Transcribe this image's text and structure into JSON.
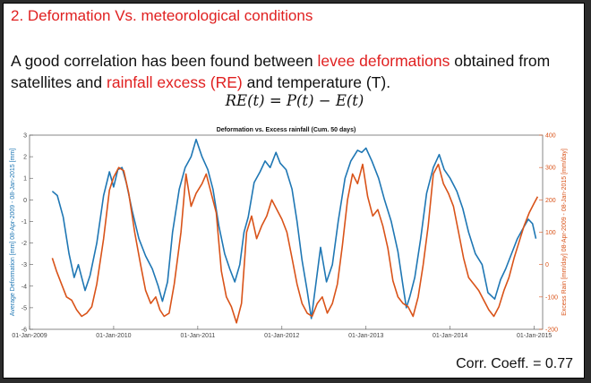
{
  "slide": {
    "heading": "2. Deformation Vs. meteorological conditions",
    "intro": {
      "part1": "A good correlation has been found between ",
      "highlight1": "levee deformations",
      "part2": " obtained from satellites and ",
      "highlight2": "rainfall excess (RE)",
      "part3": " and temperature (T).",
      "formula": "RE(t) = P(t) − E(t)"
    },
    "corr_coeff": "Corr. Coeff. = 0.77"
  },
  "chart_data": {
    "type": "line",
    "title": "Deformation vs. Excess rainfall (Cum. 50 days)",
    "ylabel_left": "Average Deformation [mm] 08-Apr-2009 - 08-Jan-2015 [mm]",
    "ylabel_right": "Excess Rain [mm/day] 08-Apr-2009 - 08-Jan-2015 [mm/day]",
    "x_ticks": [
      "01-Jan-2009",
      "01-Jan-2010",
      "01-Jan-2011",
      "01-Jan-2012",
      "01-Jan-2013",
      "01-Jan-2014",
      "01-Jan-2015"
    ],
    "x_range": [
      2009.0,
      2015.1
    ],
    "ylim_left": [
      -6,
      3
    ],
    "y_ticks_left": [
      3,
      2,
      1,
      0,
      -1,
      -2,
      -3,
      -4,
      -5,
      -6
    ],
    "ylim_right": [
      -200,
      400
    ],
    "y_ticks_right": [
      400,
      300,
      200,
      100,
      0,
      -100,
      -200
    ],
    "colors": {
      "deformation": "#1f77b4",
      "excess_rain": "#d95319"
    },
    "series": [
      {
        "axis": "left",
        "color": "#1f77b4",
        "points": [
          [
            2009.27,
            0.4
          ],
          [
            2009.33,
            0.2
          ],
          [
            2009.4,
            -0.8
          ],
          [
            2009.47,
            -2.5
          ],
          [
            2009.53,
            -3.6
          ],
          [
            2009.58,
            -3.0
          ],
          [
            2009.66,
            -4.2
          ],
          [
            2009.72,
            -3.5
          ],
          [
            2009.8,
            -2.0
          ],
          [
            2009.88,
            0.2
          ],
          [
            2009.95,
            1.3
          ],
          [
            2010.0,
            0.6
          ],
          [
            2010.05,
            1.4
          ],
          [
            2010.1,
            1.5
          ],
          [
            2010.15,
            0.8
          ],
          [
            2010.22,
            -0.5
          ],
          [
            2010.3,
            -1.8
          ],
          [
            2010.38,
            -2.6
          ],
          [
            2010.46,
            -3.2
          ],
          [
            2010.53,
            -4.0
          ],
          [
            2010.58,
            -4.7
          ],
          [
            2010.64,
            -3.8
          ],
          [
            2010.7,
            -1.5
          ],
          [
            2010.78,
            0.5
          ],
          [
            2010.85,
            1.5
          ],
          [
            2010.92,
            2.0
          ],
          [
            2010.98,
            2.8
          ],
          [
            2011.05,
            2.0
          ],
          [
            2011.12,
            1.4
          ],
          [
            2011.18,
            0.5
          ],
          [
            2011.25,
            -1.2
          ],
          [
            2011.32,
            -2.5
          ],
          [
            2011.38,
            -3.2
          ],
          [
            2011.44,
            -3.8
          ],
          [
            2011.5,
            -3.0
          ],
          [
            2011.55,
            -1.5
          ],
          [
            2011.6,
            -0.8
          ],
          [
            2011.67,
            0.8
          ],
          [
            2011.74,
            1.3
          ],
          [
            2011.8,
            1.8
          ],
          [
            2011.86,
            1.5
          ],
          [
            2011.93,
            2.2
          ],
          [
            2011.98,
            1.7
          ],
          [
            2012.05,
            1.4
          ],
          [
            2012.12,
            0.5
          ],
          [
            2012.18,
            -1.0
          ],
          [
            2012.24,
            -2.8
          ],
          [
            2012.3,
            -4.2
          ],
          [
            2012.35,
            -5.5
          ],
          [
            2012.4,
            -4.0
          ],
          [
            2012.46,
            -2.2
          ],
          [
            2012.53,
            -3.8
          ],
          [
            2012.6,
            -3.0
          ],
          [
            2012.67,
            -1.0
          ],
          [
            2012.75,
            1.0
          ],
          [
            2012.82,
            1.8
          ],
          [
            2012.9,
            2.3
          ],
          [
            2012.95,
            2.2
          ],
          [
            2013.0,
            2.4
          ],
          [
            2013.07,
            1.8
          ],
          [
            2013.15,
            1.0
          ],
          [
            2013.22,
            0.0
          ],
          [
            2013.3,
            -1.0
          ],
          [
            2013.38,
            -2.4
          ],
          [
            2013.44,
            -4.0
          ],
          [
            2013.48,
            -5.0
          ],
          [
            2013.52,
            -4.5
          ],
          [
            2013.58,
            -3.6
          ],
          [
            2013.65,
            -1.8
          ],
          [
            2013.72,
            0.3
          ],
          [
            2013.8,
            1.5
          ],
          [
            2013.87,
            2.1
          ],
          [
            2013.93,
            1.4
          ],
          [
            2014.0,
            1.0
          ],
          [
            2014.08,
            0.4
          ],
          [
            2014.15,
            -0.4
          ],
          [
            2014.22,
            -1.5
          ],
          [
            2014.3,
            -2.5
          ],
          [
            2014.38,
            -3.0
          ],
          [
            2014.45,
            -4.3
          ],
          [
            2014.53,
            -4.6
          ],
          [
            2014.6,
            -3.7
          ],
          [
            2014.66,
            -3.2
          ],
          [
            2014.72,
            -2.6
          ],
          [
            2014.8,
            -1.8
          ],
          [
            2014.87,
            -1.3
          ],
          [
            2014.93,
            -0.9
          ],
          [
            2014.98,
            -1.1
          ],
          [
            2015.02,
            -1.8
          ]
        ]
      },
      {
        "axis": "right",
        "color": "#d95319",
        "points": [
          [
            2009.27,
            20
          ],
          [
            2009.32,
            -20
          ],
          [
            2009.38,
            -60
          ],
          [
            2009.44,
            -100
          ],
          [
            2009.5,
            -110
          ],
          [
            2009.56,
            -140
          ],
          [
            2009.62,
            -160
          ],
          [
            2009.68,
            -150
          ],
          [
            2009.74,
            -130
          ],
          [
            2009.8,
            -60
          ],
          [
            2009.88,
            80
          ],
          [
            2009.95,
            230
          ],
          [
            2010.0,
            270
          ],
          [
            2010.06,
            300
          ],
          [
            2010.12,
            290
          ],
          [
            2010.18,
            220
          ],
          [
            2010.25,
            100
          ],
          [
            2010.32,
            0
          ],
          [
            2010.38,
            -80
          ],
          [
            2010.44,
            -120
          ],
          [
            2010.5,
            -100
          ],
          [
            2010.55,
            -140
          ],
          [
            2010.6,
            -160
          ],
          [
            2010.66,
            -150
          ],
          [
            2010.72,
            -60
          ],
          [
            2010.8,
            100
          ],
          [
            2010.86,
            280
          ],
          [
            2010.92,
            180
          ],
          [
            2010.98,
            220
          ],
          [
            2011.05,
            250
          ],
          [
            2011.1,
            280
          ],
          [
            2011.16,
            220
          ],
          [
            2011.22,
            160
          ],
          [
            2011.28,
            -20
          ],
          [
            2011.34,
            -100
          ],
          [
            2011.4,
            -130
          ],
          [
            2011.46,
            -180
          ],
          [
            2011.52,
            -120
          ],
          [
            2011.58,
            100
          ],
          [
            2011.64,
            150
          ],
          [
            2011.7,
            80
          ],
          [
            2011.76,
            120
          ],
          [
            2011.82,
            150
          ],
          [
            2011.88,
            200
          ],
          [
            2011.94,
            170
          ],
          [
            2012.0,
            140
          ],
          [
            2012.06,
            100
          ],
          [
            2012.12,
            20
          ],
          [
            2012.18,
            -60
          ],
          [
            2012.24,
            -120
          ],
          [
            2012.3,
            -150
          ],
          [
            2012.36,
            -160
          ],
          [
            2012.42,
            -120
          ],
          [
            2012.48,
            -100
          ],
          [
            2012.54,
            -150
          ],
          [
            2012.6,
            -120
          ],
          [
            2012.66,
            -60
          ],
          [
            2012.72,
            60
          ],
          [
            2012.78,
            200
          ],
          [
            2012.84,
            280
          ],
          [
            2012.9,
            250
          ],
          [
            2012.96,
            310
          ],
          [
            2013.02,
            210
          ],
          [
            2013.08,
            150
          ],
          [
            2013.14,
            170
          ],
          [
            2013.2,
            120
          ],
          [
            2013.26,
            50
          ],
          [
            2013.32,
            -50
          ],
          [
            2013.38,
            -100
          ],
          [
            2013.44,
            -120
          ],
          [
            2013.5,
            -130
          ],
          [
            2013.56,
            -160
          ],
          [
            2013.62,
            -100
          ],
          [
            2013.68,
            0
          ],
          [
            2013.74,
            120
          ],
          [
            2013.8,
            280
          ],
          [
            2013.86,
            310
          ],
          [
            2013.92,
            250
          ],
          [
            2013.98,
            220
          ],
          [
            2014.04,
            180
          ],
          [
            2014.1,
            100
          ],
          [
            2014.16,
            20
          ],
          [
            2014.22,
            -40
          ],
          [
            2014.28,
            -60
          ],
          [
            2014.34,
            -80
          ],
          [
            2014.4,
            -110
          ],
          [
            2014.46,
            -140
          ],
          [
            2014.52,
            -160
          ],
          [
            2014.58,
            -130
          ],
          [
            2014.64,
            -80
          ],
          [
            2014.7,
            -40
          ],
          [
            2014.76,
            20
          ],
          [
            2014.82,
            70
          ],
          [
            2014.88,
            120
          ],
          [
            2014.94,
            160
          ],
          [
            2015.0,
            190
          ],
          [
            2015.04,
            210
          ]
        ]
      }
    ]
  }
}
